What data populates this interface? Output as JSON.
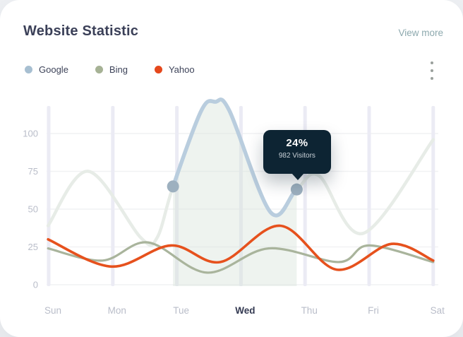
{
  "header": {
    "title": "Website Statistic",
    "view_more": "View more"
  },
  "legend": {
    "items": [
      {
        "label": "Google",
        "color": "#a7bfd1"
      },
      {
        "label": "Bing",
        "color": "#a6b295"
      },
      {
        "label": "Yahoo",
        "color": "#e5481c"
      }
    ]
  },
  "menu": {
    "icon": "kebab-vertical-dots",
    "dot_color": "#9aa09c"
  },
  "chart_data": {
    "type": "line",
    "title": "Website Statistic",
    "x_labels": [
      "Sun",
      "Mon",
      "Tue",
      "Wed",
      "Thu",
      "Fri",
      "Sat"
    ],
    "active_x_label": "Wed",
    "y_ticks": [
      0,
      25,
      50,
      75,
      100
    ],
    "ylim": [
      0,
      121
    ],
    "grid": {
      "vertical_day_bands": true,
      "horizontal_lines": true,
      "band_color": "#ebebf4",
      "line_color": "#f1f2f4"
    },
    "axis": {
      "tick_color": "#b9bdc9",
      "active_tick_color": "#343a52"
    },
    "series": [
      {
        "name": "Google",
        "dim_line_color": "#e7ece7",
        "highlight_line_color": "#b9cdde",
        "marker_color": "#9db0bf",
        "area_fill": "rgba(213,226,215,0.40)",
        "points": [
          [
            -0.01,
            39
          ],
          [
            0.62,
            75
          ],
          [
            1.44,
            31
          ],
          [
            1.69,
            31
          ],
          [
            1.94,
            65
          ],
          [
            2.38,
            115
          ],
          [
            2.6,
            121
          ],
          [
            2.82,
            115
          ],
          [
            3.46,
            48
          ],
          [
            3.87,
            63
          ],
          [
            4.22,
            72
          ],
          [
            4.91,
            34
          ],
          [
            6.0,
            96
          ]
        ],
        "highlight_from_index": 4,
        "highlight_to_index": 9,
        "marker_point_indices": [
          4,
          9
        ]
      },
      {
        "name": "Bing",
        "line_color": "#a9b49c",
        "points": [
          [
            -0.01,
            24
          ],
          [
            0.84,
            16
          ],
          [
            1.55,
            28
          ],
          [
            2.47,
            8
          ],
          [
            3.43,
            24
          ],
          [
            4.53,
            15
          ],
          [
            5.0,
            26
          ],
          [
            6.0,
            15
          ]
        ]
      },
      {
        "name": "Yahoo",
        "line_color": "#e6511d",
        "points": [
          [
            -0.01,
            30
          ],
          [
            0.98,
            12
          ],
          [
            1.91,
            26
          ],
          [
            2.68,
            15
          ],
          [
            3.61,
            39
          ],
          [
            4.49,
            10
          ],
          [
            5.35,
            27
          ],
          [
            6.0,
            16
          ]
        ]
      }
    ],
    "tooltip": {
      "value": "24%",
      "label": "982 Visitors",
      "series": "Google",
      "point_index": 9
    }
  }
}
